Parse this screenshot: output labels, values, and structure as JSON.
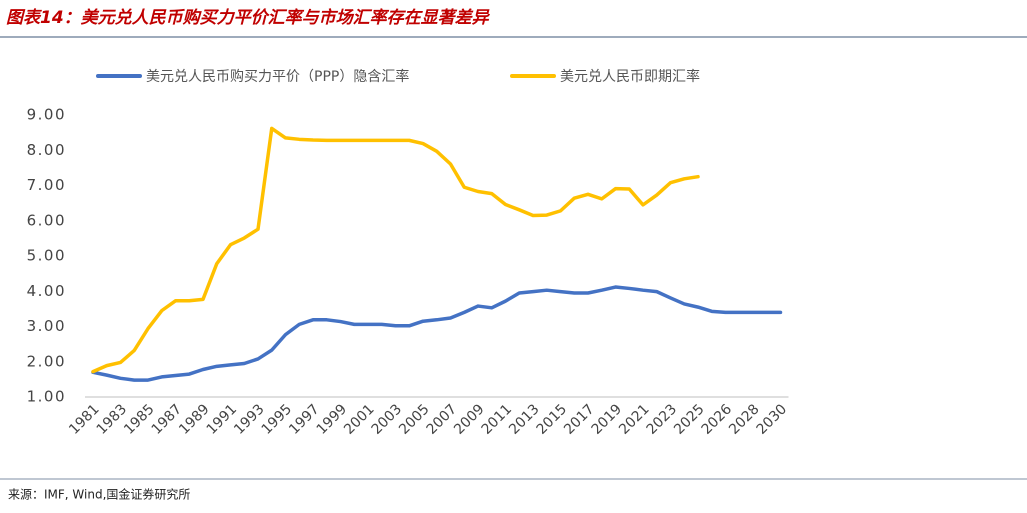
{
  "header": {
    "title": "图表14：美元兑人民币购买力平价汇率与市场汇率存在显著差异"
  },
  "chart_data": {
    "type": "line",
    "categories": [
      "1981",
      null,
      "1983",
      null,
      "1985",
      null,
      "1987",
      null,
      "1989",
      null,
      "1991",
      null,
      "1993",
      null,
      "1995",
      null,
      "1997",
      null,
      "1999",
      null,
      "2001",
      null,
      "2003",
      null,
      "2005",
      null,
      "2007",
      null,
      "2009",
      null,
      "2011",
      null,
      "2013",
      null,
      "2015",
      null,
      "2017",
      null,
      "2019",
      null,
      "2021",
      null,
      "2023",
      null,
      "2025",
      null,
      "2026",
      null,
      "2028",
      null,
      "2030"
    ],
    "series": [
      {
        "name": "美元兑人民币购买力平价（PPP）隐含汇率",
        "color": "#4472c4",
        "values": [
          1.7,
          1.62,
          1.53,
          1.48,
          1.48,
          1.57,
          1.61,
          1.65,
          1.78,
          1.87,
          1.91,
          1.95,
          2.08,
          2.33,
          2.77,
          3.06,
          3.19,
          3.19,
          3.14,
          3.06,
          3.06,
          3.06,
          3.02,
          3.02,
          3.15,
          3.19,
          3.24,
          3.4,
          3.58,
          3.53,
          3.72,
          3.95,
          3.99,
          4.03,
          3.99,
          3.95,
          3.95,
          4.03,
          4.12,
          4.08,
          4.03,
          3.99,
          3.81,
          3.64,
          3.55,
          3.43,
          3.4,
          3.4,
          3.4,
          3.4,
          3.4
        ]
      },
      {
        "name": "美元兑人民币即期汇率",
        "color": "#ffc000",
        "values": [
          1.72,
          1.89,
          1.98,
          2.32,
          2.94,
          3.45,
          3.73,
          3.73,
          3.77,
          4.78,
          5.32,
          5.51,
          5.76,
          8.62,
          8.35,
          8.31,
          8.29,
          8.28,
          8.28,
          8.28,
          8.28,
          8.28,
          8.28,
          8.28,
          8.19,
          7.97,
          7.61,
          6.95,
          6.83,
          6.77,
          6.46,
          6.31,
          6.15,
          6.16,
          6.28,
          6.64,
          6.75,
          6.62,
          6.91,
          6.9,
          6.45,
          6.73,
          7.08,
          7.19,
          7.25,
          null,
          null,
          null,
          null,
          null,
          null
        ]
      }
    ],
    "ylim": [
      1,
      9
    ],
    "yticks": [
      {
        "value": 1,
        "label": "1.00"
      },
      {
        "value": 2,
        "label": "2.00"
      },
      {
        "value": 3,
        "label": "3.00"
      },
      {
        "value": 4,
        "label": "4.00"
      },
      {
        "value": 5,
        "label": "5.00"
      },
      {
        "value": 6,
        "label": "6.00"
      },
      {
        "value": 7,
        "label": "7.00"
      },
      {
        "value": 8,
        "label": "8.00"
      },
      {
        "value": 9,
        "label": "9.00"
      }
    ],
    "grid": false,
    "legend": "top"
  },
  "footer": {
    "source": "来源：IMF, Wind,国金证券研究所"
  }
}
